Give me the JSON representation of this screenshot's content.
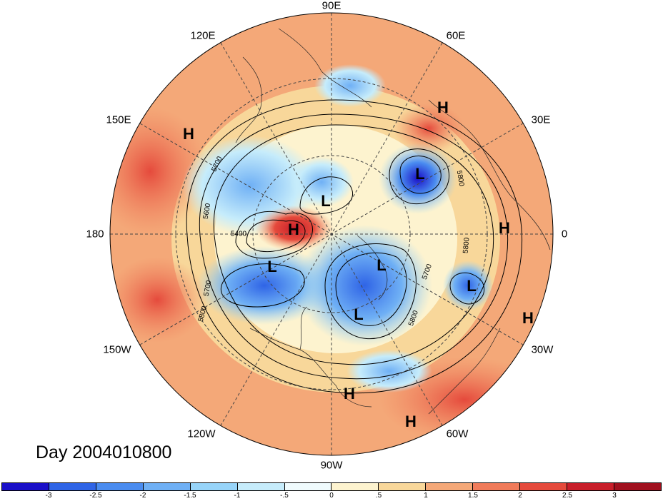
{
  "map": {
    "type": "polar-stereographic",
    "hemisphere": "north",
    "longitude_labels": [
      "90E",
      "60E",
      "30E",
      "0",
      "30W",
      "60W",
      "90W",
      "120W",
      "150W",
      "180",
      "150E",
      "120E"
    ],
    "pressure_centers": [
      "H",
      "H",
      "H",
      "H",
      "H",
      "H",
      "H",
      "L",
      "L",
      "L",
      "L",
      "L",
      "L"
    ],
    "contour_labels": [
      "5700",
      "5600",
      "5400",
      "5800",
      "5700",
      "5800",
      "5700",
      "5800",
      "5800"
    ],
    "day_label": "Day 2004010800"
  },
  "colorbar": {
    "ticks": [
      "-3",
      "-2.5",
      "-2",
      "-1.5",
      "-1",
      "-.5",
      "0",
      ".5",
      "1",
      "1.5",
      "2",
      "2.5",
      "3"
    ],
    "colors": [
      "#1a10c8",
      "#2f64e6",
      "#4a8cf0",
      "#6fb0f5",
      "#97d4f9",
      "#c6ecfb",
      "#f0fbfd",
      "#fdf3cf",
      "#f8d79a",
      "#f4a878",
      "#f07b5a",
      "#e54a3c",
      "#c81e2a",
      "#a0101e"
    ]
  }
}
